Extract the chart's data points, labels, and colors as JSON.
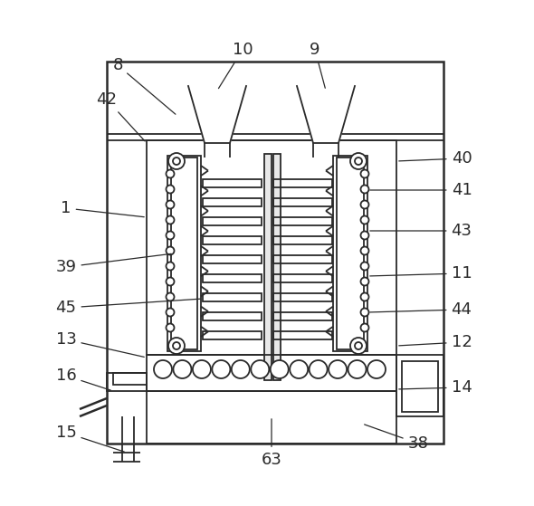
{
  "bg_color": "#ffffff",
  "line_color": "#2a2a2a",
  "lw": 1.3,
  "lw_thick": 1.8,
  "fs": 13,
  "fs_small": 11
}
